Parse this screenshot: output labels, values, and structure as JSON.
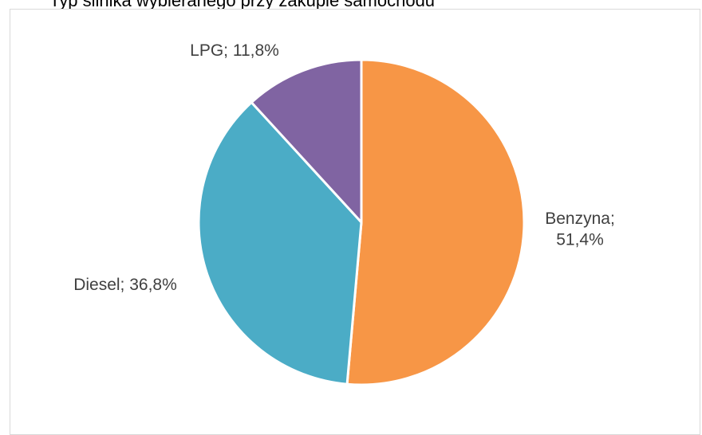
{
  "page": {
    "title": "Typ silnika wybieranego przy zakupie samochodu"
  },
  "chart_data": {
    "type": "pie",
    "title": "",
    "slices": [
      {
        "label": "Benzyna",
        "value": 51.4,
        "display": "51,4%",
        "color": "#F79646"
      },
      {
        "label": "Diesel",
        "value": 36.8,
        "display": "36,8%",
        "color": "#4BACC6"
      },
      {
        "label": "LPG",
        "value": 11.8,
        "display": "11,8%",
        "color": "#8064A2"
      }
    ],
    "start_angle_deg": 0,
    "direction": "clockwise",
    "legend": "none"
  }
}
